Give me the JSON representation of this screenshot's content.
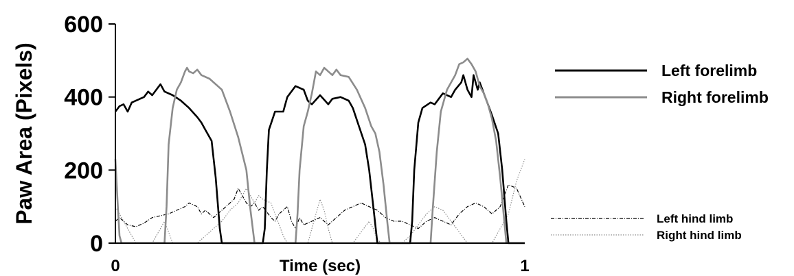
{
  "chart_data": {
    "type": "line",
    "title": "",
    "xlabel": "Time (sec)",
    "ylabel": "Paw Area (Pixels)",
    "xlim": [
      0,
      1
    ],
    "ylim": [
      0,
      600
    ],
    "x_ticks": [
      {
        "value": 0,
        "label": "0"
      },
      {
        "value": 1,
        "label": "1"
      }
    ],
    "y_ticks": [
      {
        "value": 0,
        "label": "0"
      },
      {
        "value": 200,
        "label": "200"
      },
      {
        "value": 400,
        "label": "400"
      },
      {
        "value": 600,
        "label": "600"
      }
    ],
    "grid": false,
    "legend_position": "right",
    "series": [
      {
        "name": "Left forelimb",
        "color": "#000000",
        "style": "solid",
        "points": [
          [
            0.0,
            360
          ],
          [
            0.01,
            375
          ],
          [
            0.02,
            380
          ],
          [
            0.03,
            360
          ],
          [
            0.04,
            385
          ],
          [
            0.06,
            395
          ],
          [
            0.07,
            400
          ],
          [
            0.08,
            415
          ],
          [
            0.09,
            405
          ],
          [
            0.1,
            420
          ],
          [
            0.11,
            435
          ],
          [
            0.12,
            415
          ],
          [
            0.14,
            405
          ],
          [
            0.16,
            390
          ],
          [
            0.18,
            370
          ],
          [
            0.2,
            345
          ],
          [
            0.21,
            330
          ],
          [
            0.22,
            310
          ],
          [
            0.235,
            280
          ],
          [
            0.245,
            180
          ],
          [
            0.255,
            40
          ],
          [
            0.26,
            0
          ],
          [
            0.27,
            0
          ],
          [
            0.36,
            0
          ],
          [
            0.365,
            40
          ],
          [
            0.37,
            200
          ],
          [
            0.375,
            310
          ],
          [
            0.39,
            360
          ],
          [
            0.41,
            360
          ],
          [
            0.42,
            400
          ],
          [
            0.44,
            430
          ],
          [
            0.46,
            420
          ],
          [
            0.47,
            390
          ],
          [
            0.48,
            380
          ],
          [
            0.5,
            405
          ],
          [
            0.52,
            380
          ],
          [
            0.53,
            395
          ],
          [
            0.55,
            400
          ],
          [
            0.57,
            390
          ],
          [
            0.58,
            370
          ],
          [
            0.595,
            320
          ],
          [
            0.61,
            270
          ],
          [
            0.62,
            200
          ],
          [
            0.63,
            100
          ],
          [
            0.64,
            0
          ],
          [
            0.72,
            0
          ],
          [
            0.725,
            60
          ],
          [
            0.73,
            200
          ],
          [
            0.74,
            330
          ],
          [
            0.75,
            370
          ],
          [
            0.77,
            385
          ],
          [
            0.78,
            380
          ],
          [
            0.8,
            410
          ],
          [
            0.82,
            400
          ],
          [
            0.83,
            420
          ],
          [
            0.845,
            440
          ],
          [
            0.85,
            460
          ],
          [
            0.86,
            420
          ],
          [
            0.87,
            400
          ],
          [
            0.875,
            460
          ],
          [
            0.885,
            420
          ],
          [
            0.89,
            440
          ],
          [
            0.9,
            410
          ],
          [
            0.91,
            380
          ],
          [
            0.92,
            350
          ],
          [
            0.935,
            300
          ],
          [
            0.945,
            200
          ],
          [
            0.955,
            60
          ],
          [
            0.96,
            0
          ],
          [
            1.0,
            0
          ]
        ]
      },
      {
        "name": "Right forelimb",
        "color": "#8c8c8c",
        "style": "solid",
        "points": [
          [
            0.0,
            230
          ],
          [
            0.005,
            120
          ],
          [
            0.01,
            20
          ],
          [
            0.015,
            0
          ],
          [
            0.12,
            0
          ],
          [
            0.125,
            100
          ],
          [
            0.13,
            270
          ],
          [
            0.14,
            370
          ],
          [
            0.15,
            420
          ],
          [
            0.16,
            440
          ],
          [
            0.17,
            470
          ],
          [
            0.175,
            480
          ],
          [
            0.18,
            470
          ],
          [
            0.19,
            465
          ],
          [
            0.2,
            475
          ],
          [
            0.21,
            460
          ],
          [
            0.23,
            450
          ],
          [
            0.26,
            420
          ],
          [
            0.28,
            360
          ],
          [
            0.3,
            290
          ],
          [
            0.32,
            200
          ],
          [
            0.33,
            90
          ],
          [
            0.34,
            0
          ],
          [
            0.44,
            0
          ],
          [
            0.445,
            80
          ],
          [
            0.45,
            200
          ],
          [
            0.46,
            320
          ],
          [
            0.47,
            360
          ],
          [
            0.48,
            410
          ],
          [
            0.49,
            470
          ],
          [
            0.5,
            460
          ],
          [
            0.51,
            480
          ],
          [
            0.52,
            470
          ],
          [
            0.53,
            460
          ],
          [
            0.54,
            475
          ],
          [
            0.55,
            460
          ],
          [
            0.57,
            455
          ],
          [
            0.59,
            420
          ],
          [
            0.61,
            370
          ],
          [
            0.625,
            320
          ],
          [
            0.635,
            300
          ],
          [
            0.645,
            250
          ],
          [
            0.655,
            160
          ],
          [
            0.665,
            50
          ],
          [
            0.67,
            0
          ],
          [
            0.77,
            0
          ],
          [
            0.775,
            90
          ],
          [
            0.785,
            250
          ],
          [
            0.795,
            360
          ],
          [
            0.81,
            420
          ],
          [
            0.83,
            460
          ],
          [
            0.84,
            490
          ],
          [
            0.85,
            495
          ],
          [
            0.86,
            505
          ],
          [
            0.87,
            490
          ],
          [
            0.88,
            470
          ],
          [
            0.89,
            430
          ],
          [
            0.9,
            410
          ],
          [
            0.91,
            380
          ],
          [
            0.92,
            340
          ],
          [
            0.93,
            280
          ],
          [
            0.94,
            180
          ],
          [
            0.95,
            60
          ],
          [
            0.955,
            0
          ],
          [
            1.0,
            0
          ]
        ]
      },
      {
        "name": "Left hind limb",
        "color": "#000000",
        "style": "dashdot",
        "points": [
          [
            0.0,
            60
          ],
          [
            0.01,
            70
          ],
          [
            0.02,
            60
          ],
          [
            0.03,
            50
          ],
          [
            0.05,
            45
          ],
          [
            0.07,
            55
          ],
          [
            0.09,
            70
          ],
          [
            0.11,
            75
          ],
          [
            0.13,
            80
          ],
          [
            0.15,
            90
          ],
          [
            0.17,
            100
          ],
          [
            0.18,
            110
          ],
          [
            0.2,
            100
          ],
          [
            0.21,
            80
          ],
          [
            0.22,
            90
          ],
          [
            0.24,
            70
          ],
          [
            0.26,
            90
          ],
          [
            0.28,
            110
          ],
          [
            0.29,
            120
          ],
          [
            0.3,
            150
          ],
          [
            0.31,
            130
          ],
          [
            0.32,
            110
          ],
          [
            0.33,
            100
          ],
          [
            0.34,
            110
          ],
          [
            0.35,
            90
          ],
          [
            0.36,
            100
          ],
          [
            0.38,
            70
          ],
          [
            0.39,
            60
          ],
          [
            0.4,
            80
          ],
          [
            0.42,
            100
          ],
          [
            0.43,
            60
          ],
          [
            0.44,
            40
          ],
          [
            0.45,
            70
          ],
          [
            0.46,
            50
          ],
          [
            0.48,
            60
          ],
          [
            0.5,
            70
          ],
          [
            0.52,
            50
          ],
          [
            0.54,
            70
          ],
          [
            0.56,
            90
          ],
          [
            0.58,
            100
          ],
          [
            0.6,
            110
          ],
          [
            0.62,
            100
          ],
          [
            0.64,
            90
          ],
          [
            0.66,
            70
          ],
          [
            0.68,
            60
          ],
          [
            0.7,
            60
          ],
          [
            0.72,
            50
          ],
          [
            0.74,
            40
          ],
          [
            0.76,
            60
          ],
          [
            0.78,
            70
          ],
          [
            0.8,
            60
          ],
          [
            0.82,
            50
          ],
          [
            0.84,
            80
          ],
          [
            0.86,
            100
          ],
          [
            0.88,
            110
          ],
          [
            0.9,
            100
          ],
          [
            0.92,
            80
          ],
          [
            0.94,
            100
          ],
          [
            0.96,
            160
          ],
          [
            0.98,
            150
          ],
          [
            1.0,
            100
          ]
        ]
      },
      {
        "name": "Right hind limb",
        "color": "#8c8c8c",
        "style": "dotted",
        "points": [
          [
            0.0,
            100
          ],
          [
            0.01,
            80
          ],
          [
            0.02,
            60
          ],
          [
            0.03,
            40
          ],
          [
            0.04,
            20
          ],
          [
            0.05,
            0
          ],
          [
            0.09,
            0
          ],
          [
            0.1,
            20
          ],
          [
            0.11,
            40
          ],
          [
            0.12,
            60
          ],
          [
            0.13,
            30
          ],
          [
            0.14,
            0
          ],
          [
            0.2,
            0
          ],
          [
            0.22,
            20
          ],
          [
            0.24,
            40
          ],
          [
            0.26,
            60
          ],
          [
            0.28,
            90
          ],
          [
            0.3,
            110
          ],
          [
            0.31,
            130
          ],
          [
            0.32,
            150
          ],
          [
            0.33,
            130
          ],
          [
            0.34,
            110
          ],
          [
            0.35,
            130
          ],
          [
            0.36,
            120
          ],
          [
            0.38,
            110
          ],
          [
            0.39,
            80
          ],
          [
            0.4,
            50
          ],
          [
            0.41,
            20
          ],
          [
            0.42,
            0
          ],
          [
            0.47,
            0
          ],
          [
            0.48,
            40
          ],
          [
            0.49,
            80
          ],
          [
            0.5,
            120
          ],
          [
            0.51,
            90
          ],
          [
            0.52,
            40
          ],
          [
            0.53,
            0
          ],
          [
            0.58,
            0
          ],
          [
            0.6,
            30
          ],
          [
            0.62,
            60
          ],
          [
            0.63,
            40
          ],
          [
            0.64,
            10
          ],
          [
            0.65,
            0
          ],
          [
            0.7,
            0
          ],
          [
            0.72,
            20
          ],
          [
            0.74,
            50
          ],
          [
            0.76,
            80
          ],
          [
            0.78,
            100
          ],
          [
            0.8,
            90
          ],
          [
            0.82,
            60
          ],
          [
            0.84,
            30
          ],
          [
            0.86,
            0
          ],
          [
            0.92,
            0
          ],
          [
            0.94,
            40
          ],
          [
            0.96,
            80
          ],
          [
            0.98,
            170
          ],
          [
            1.0,
            230
          ]
        ]
      }
    ]
  }
}
